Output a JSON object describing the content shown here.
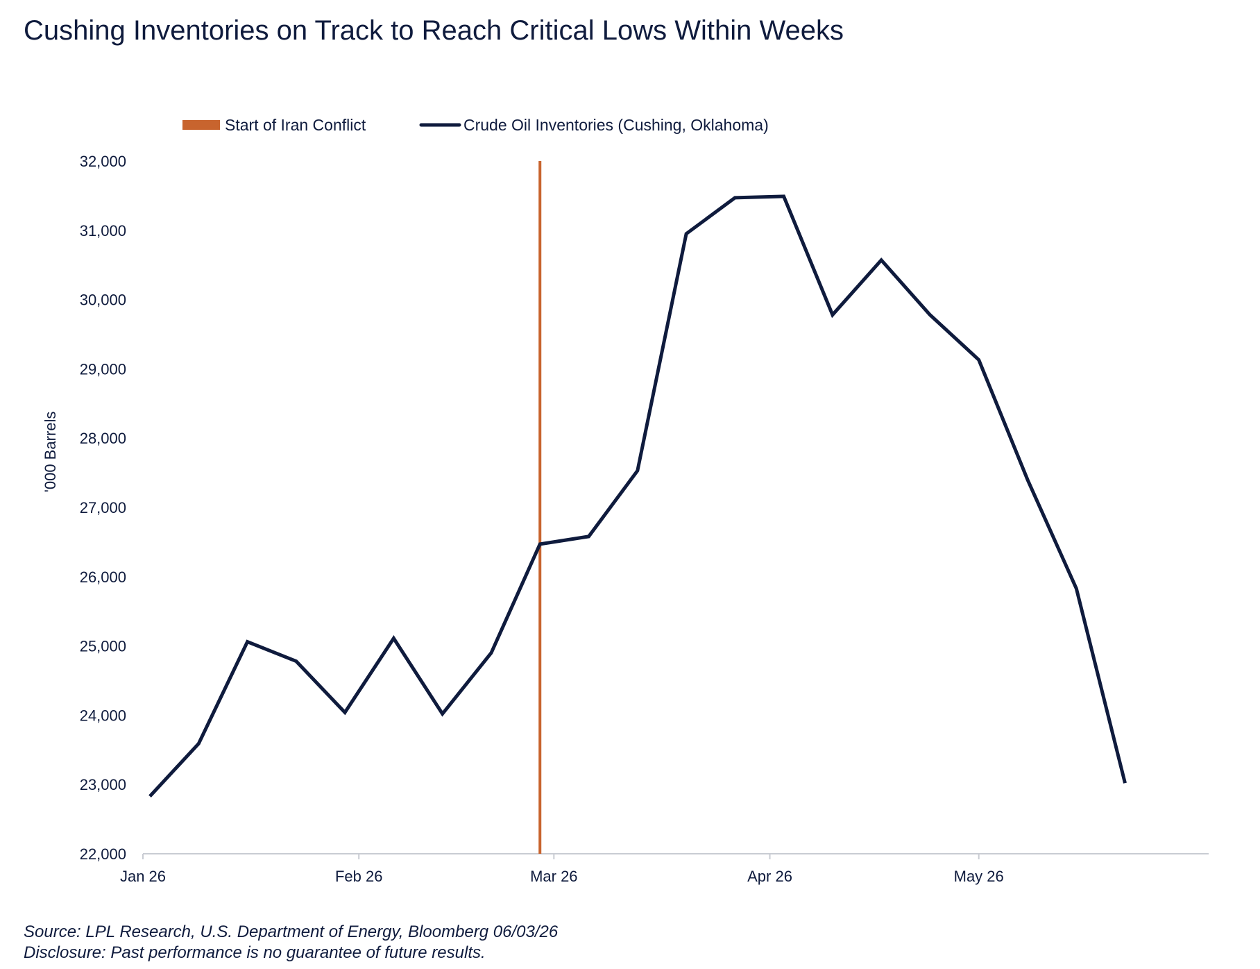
{
  "title": "Cushing Inventories on Track to Reach Critical Lows Within Weeks",
  "footnotes": {
    "source": "Source: LPL Research, U.S. Department of Energy, Bloomberg 06/03/26",
    "disclosure": "Disclosure: Past performance is no guarantee of future results."
  },
  "chart_data": {
    "type": "line",
    "ylabel": "'000 Barrels",
    "xlabel": "",
    "ylim": [
      22000,
      32000
    ],
    "y_ticks": [
      {
        "value": 22000,
        "label": "22,000"
      },
      {
        "value": 23000,
        "label": "23,000"
      },
      {
        "value": 24000,
        "label": "24,000"
      },
      {
        "value": 25000,
        "label": "25,000"
      },
      {
        "value": 26000,
        "label": "26,000"
      },
      {
        "value": 27000,
        "label": "27,000"
      },
      {
        "value": 28000,
        "label": "28,000"
      },
      {
        "value": 29000,
        "label": "29,000"
      },
      {
        "value": 30000,
        "label": "30,000"
      },
      {
        "value": 31000,
        "label": "31,000"
      },
      {
        "value": 32000,
        "label": "32,000"
      }
    ],
    "xlim": [
      "2026-01-01",
      "2026-06-03"
    ],
    "x_ticks": [
      {
        "date": "2026-01-01",
        "label": "Jan 26"
      },
      {
        "date": "2026-02-01",
        "label": "Feb 26"
      },
      {
        "date": "2026-03-01",
        "label": "Mar 26"
      },
      {
        "date": "2026-04-01",
        "label": "Apr 26"
      },
      {
        "date": "2026-05-01",
        "label": "May 26"
      }
    ],
    "grid": false,
    "legend_position": "top",
    "legend": [
      {
        "label": "Start of Iran Conflict",
        "color": "#c8642e",
        "kind": "bar"
      },
      {
        "label": "Crude Oil Inventories (Cushing, Oklahoma)",
        "color": "#0f1b3d",
        "kind": "line"
      }
    ],
    "event_marker": {
      "label": "Start of Iran Conflict",
      "date": "2026-02-27",
      "color": "#c8642e"
    },
    "series": [
      {
        "name": "Crude Oil Inventories (Cushing, Oklahoma)",
        "color": "#0f1b3d",
        "points": [
          {
            "x": "2026-01-02",
            "y": 22830
          },
          {
            "x": "2026-01-09",
            "y": 23590
          },
          {
            "x": "2026-01-16",
            "y": 25060
          },
          {
            "x": "2026-01-23",
            "y": 24780
          },
          {
            "x": "2026-01-30",
            "y": 24040
          },
          {
            "x": "2026-02-06",
            "y": 25110
          },
          {
            "x": "2026-02-13",
            "y": 24020
          },
          {
            "x": "2026-02-20",
            "y": 24900
          },
          {
            "x": "2026-02-27",
            "y": 26470
          },
          {
            "x": "2026-03-06",
            "y": 26580
          },
          {
            "x": "2026-03-13",
            "y": 27530
          },
          {
            "x": "2026-03-20",
            "y": 30950
          },
          {
            "x": "2026-03-27",
            "y": 31470
          },
          {
            "x": "2026-04-03",
            "y": 31490
          },
          {
            "x": "2026-04-10",
            "y": 29780
          },
          {
            "x": "2026-04-17",
            "y": 30570
          },
          {
            "x": "2026-04-24",
            "y": 29780
          },
          {
            "x": "2026-05-01",
            "y": 29130
          },
          {
            "x": "2026-05-08",
            "y": 27400
          },
          {
            "x": "2026-05-15",
            "y": 25830
          },
          {
            "x": "2026-05-22",
            "y": 23020
          }
        ]
      }
    ]
  }
}
